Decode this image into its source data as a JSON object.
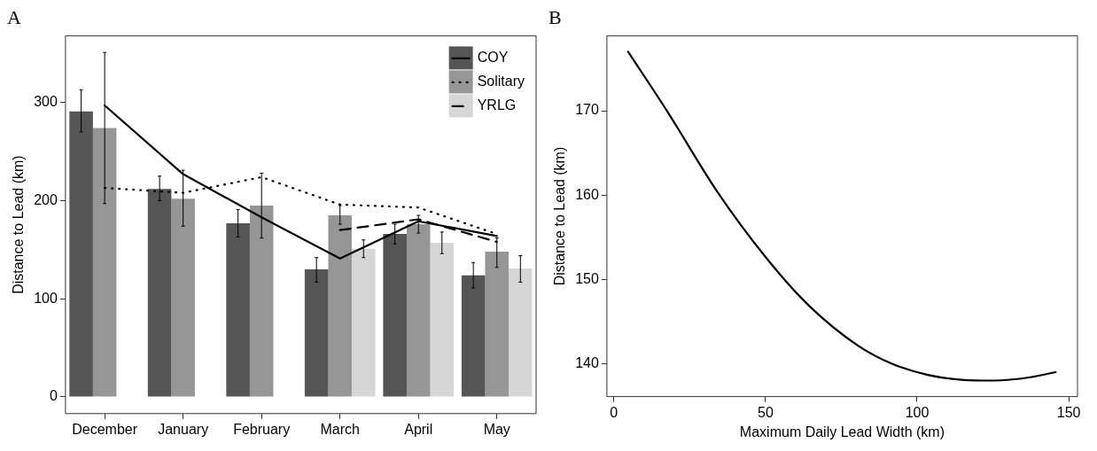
{
  "chart_data": [
    {
      "type": "bar",
      "title": "A",
      "ylabel": "Distance to Lead (km)",
      "categories": [
        "December",
        "January",
        "February",
        "March",
        "April",
        "May"
      ],
      "ylim": [
        -17,
        368
      ],
      "yticks": [
        0,
        100,
        200,
        300
      ],
      "legend": "top right",
      "series": [
        {
          "name": "COY",
          "color": "#555555",
          "values": [
            291,
            212,
            177,
            130,
            166,
            124
          ],
          "errors": [
            [
              270,
              313
            ],
            [
              200,
              225
            ],
            [
              163,
              191
            ],
            [
              117,
              142
            ],
            [
              156,
              176
            ],
            [
              111,
              137
            ]
          ]
        },
        {
          "name": "Solitary",
          "color": "#969696",
          "values": [
            274,
            202,
            195,
            185,
            176,
            148
          ],
          "errors": [
            [
              197,
              351
            ],
            [
              174,
              231
            ],
            [
              162,
              228
            ],
            [
              176,
              195
            ],
            [
              167,
              185
            ],
            [
              132,
              162
            ]
          ]
        },
        {
          "name": "YRLG",
          "color": "#d6d6d6",
          "values": [
            null,
            null,
            null,
            151,
            157,
            131
          ],
          "errors": [
            null,
            null,
            null,
            [
              142,
              160
            ],
            [
              146,
              168
            ],
            [
              117,
              144
            ]
          ]
        },
        {
          "type": "line",
          "color": "#000000",
          "line_style": "solid",
          "values": [
            297,
            227,
            183,
            141,
            179,
            164
          ]
        },
        {
          "type": "line",
          "color": "#000000",
          "line_style": "dotted",
          "values": [
            213,
            208,
            224,
            196,
            193,
            166
          ]
        },
        {
          "type": "line",
          "color": "#000000",
          "line_style": "dashed",
          "values": [
            null,
            null,
            null,
            170,
            181,
            158
          ]
        }
      ]
    },
    {
      "type": "line",
      "title": "B",
      "xlabel": "Maximum Daily Lead Width (km)",
      "ylabel": "Distance to Lead (km)",
      "xlim": [
        -2.3,
        152.9
      ],
      "ylim": [
        136.1,
        178.9
      ],
      "xticks": [
        0,
        50,
        100,
        150
      ],
      "yticks": [
        140,
        150,
        160,
        170
      ],
      "line_style": "solid",
      "x": [
        4.7,
        17.5,
        34.3,
        50.6,
        64.3,
        80.3,
        91.7,
        103.2,
        114.6,
        125.4,
        137.4,
        145.7
      ],
      "values": [
        177.0,
        170.0,
        160.3,
        152.4,
        146.9,
        142.2,
        140.0,
        138.7,
        138.1,
        138.0,
        138.4,
        139.0
      ],
      "color": "#000000"
    }
  ]
}
